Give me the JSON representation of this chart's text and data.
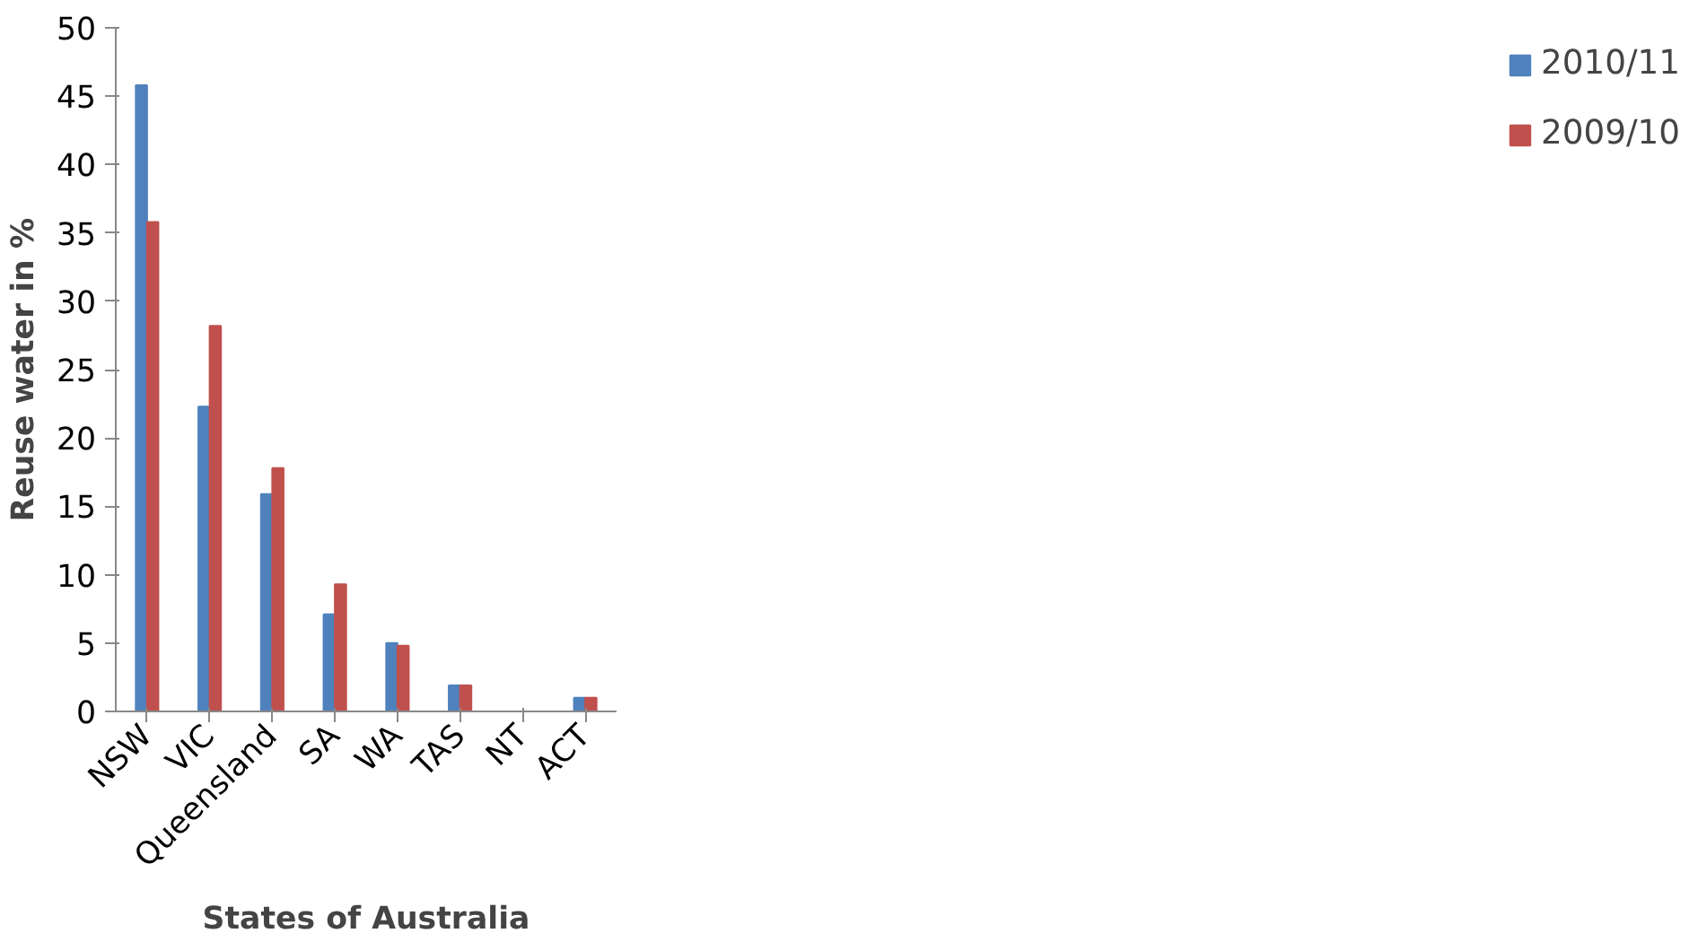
{
  "chart_data": {
    "type": "bar",
    "xlabel": "States of Australia",
    "ylabel": "Reuse water in %",
    "categories": [
      "NSW",
      "VIC",
      "Queensland",
      "SA",
      "WA",
      "TAS",
      "NT",
      "ACT"
    ],
    "series": [
      {
        "name": "2010/11",
        "color": "#4f81bd",
        "values": [
          45.8,
          22.3,
          15.9,
          7.1,
          5.0,
          1.9,
          0,
          1.0
        ]
      },
      {
        "name": "2009/10",
        "color": "#c0504d",
        "values": [
          35.8,
          28.2,
          17.8,
          9.3,
          4.8,
          1.9,
          0,
          1.0
        ]
      }
    ],
    "ylim": [
      0,
      50
    ],
    "yticks": [
      0,
      5,
      10,
      15,
      20,
      25,
      30,
      35,
      40,
      45,
      50
    ],
    "grid": false,
    "legend": "right"
  }
}
